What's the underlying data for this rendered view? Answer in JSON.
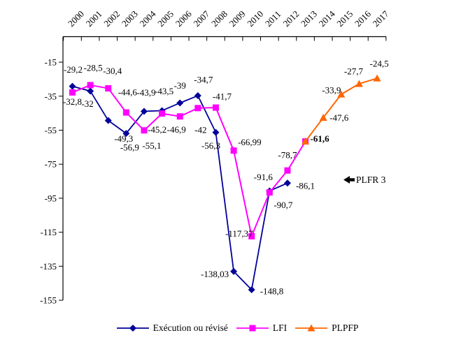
{
  "chart_data": {
    "type": "line",
    "title": "",
    "grid": false,
    "legend_position": "bottom",
    "x_axis_position": "top",
    "x_categories": [
      "2000",
      "2001",
      "2002",
      "2003",
      "2004",
      "2005",
      "2006",
      "2007",
      "2008",
      "2009",
      "2010",
      "2011",
      "2012",
      "2013",
      "2014",
      "2015",
      "2016",
      "2017"
    ],
    "y_axis_ticks": [
      "-15",
      "-35",
      "-55",
      "-75",
      "-95",
      "-115",
      "-135",
      "-155"
    ],
    "y_range": [
      0,
      -155
    ],
    "series": [
      {
        "name": "Exécution ou révisé",
        "color": "#000099",
        "marker": "diamond",
        "points": [
          {
            "year": "2000",
            "value": -29.2,
            "label": "-29,2"
          },
          {
            "year": "2001",
            "value": -32,
            "label": "-32"
          },
          {
            "year": "2002",
            "value": -49.3,
            "label": "-49,3"
          },
          {
            "year": "2003",
            "value": -56.9,
            "label": "-56,9"
          },
          {
            "year": "2004",
            "value": -43.9,
            "label": "-43,9"
          },
          {
            "year": "2005",
            "value": -43.5,
            "label": "-43,5"
          },
          {
            "year": "2006",
            "value": -39,
            "label": "-39"
          },
          {
            "year": "2007",
            "value": -34.7,
            "label": "-34,7"
          },
          {
            "year": "2008",
            "value": -56.3,
            "label": "-56,3"
          },
          {
            "year": "2009",
            "value": -138.03,
            "label": "-138,03"
          },
          {
            "year": "2010",
            "value": -148.8,
            "label": "-148,8"
          },
          {
            "year": "2011",
            "value": -90.7,
            "label": "-90,7"
          },
          {
            "year": "2012",
            "value": -86.1,
            "label": "-86,1"
          }
        ]
      },
      {
        "name": "LFI",
        "color": "#FF00FF",
        "marker": "square",
        "points": [
          {
            "year": "2000",
            "value": -32.8,
            "label": "-32,8"
          },
          {
            "year": "2001",
            "value": -28.5,
            "label": "-28,5"
          },
          {
            "year": "2002",
            "value": -30.4,
            "label": "-30,4"
          },
          {
            "year": "2003",
            "value": -44.6,
            "label": "-44,6"
          },
          {
            "year": "2004",
            "value": -55.1,
            "label": "-55,1"
          },
          {
            "year": "2005",
            "value": -45.2,
            "label": "-45,2"
          },
          {
            "year": "2006",
            "value": -46.9,
            "label": "-46,9"
          },
          {
            "year": "2007",
            "value": -42,
            "label": "-42"
          },
          {
            "year": "2008",
            "value": -41.7,
            "label": "-41,7"
          },
          {
            "year": "2009",
            "value": -66.99,
            "label": "-66,99"
          },
          {
            "year": "2010",
            "value": -117.37,
            "label": "-117,37"
          },
          {
            "year": "2011",
            "value": -91.6,
            "label": "-91,6"
          },
          {
            "year": "2012",
            "value": -78.7,
            "label": "-78,7"
          },
          {
            "year": "2013",
            "value": -61.6,
            "label": ""
          }
        ]
      },
      {
        "name": "PLPFP",
        "color": "#FF6600",
        "marker": "triangle",
        "points": [
          {
            "year": "2013",
            "value": -61.6,
            "label": "-61,6",
            "bold": true
          },
          {
            "year": "2014",
            "value": -47.6,
            "label": "-47,6"
          },
          {
            "year": "2015",
            "value": -33.9,
            "label": "-33,9"
          },
          {
            "year": "2016",
            "value": -27.7,
            "label": "-27,7"
          },
          {
            "year": "2017",
            "value": -24.5,
            "label": "-24,5"
          }
        ]
      }
    ],
    "annotation": {
      "text": "PLFR 3",
      "icon": "left-arrow-icon"
    }
  },
  "colors": {
    "execution": "#000099",
    "lfi": "#FF00FF",
    "plpfp": "#FF6600",
    "axis": "#000000",
    "background": "#ffffff"
  }
}
